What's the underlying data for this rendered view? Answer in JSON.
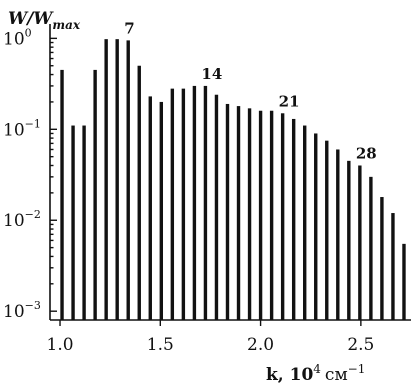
{
  "chart_data": {
    "type": "bar",
    "log_y": true,
    "grid": false,
    "ylabel": "W/W",
    "ylabel_sub": "max",
    "xlabel": "k, 10",
    "xlabel_exp": "4",
    "xlabel_unit": "см",
    "xlabel_unit_exp": "−1",
    "xlim": [
      0.95,
      2.75
    ],
    "ylim": [
      0.0008,
      1.3
    ],
    "x_ticks": [
      1.0,
      1.5,
      2.0,
      2.5
    ],
    "x_tick_labels": [
      "1.0",
      "1.5",
      "2.0",
      "2.5"
    ],
    "y_ticks": [
      1,
      0.1,
      0.01,
      0.001
    ],
    "y_tick_labels": [
      {
        "base": "10",
        "exp": "0"
      },
      {
        "base": "10",
        "exp": "−1"
      },
      {
        "base": "10",
        "exp": "−2"
      },
      {
        "base": "10",
        "exp": "−3"
      }
    ],
    "x": [
      1.01,
      1.065,
      1.12,
      1.175,
      1.23,
      1.285,
      1.34,
      1.395,
      1.45,
      1.505,
      1.56,
      1.615,
      1.67,
      1.725,
      1.78,
      1.835,
      1.89,
      1.945,
      2.0,
      2.055,
      2.11,
      2.165,
      2.22,
      2.275,
      2.33,
      2.385,
      2.44,
      2.495,
      2.55,
      2.605,
      2.66,
      2.715
    ],
    "values": [
      0.45,
      0.11,
      0.11,
      0.45,
      0.98,
      0.98,
      0.95,
      0.5,
      0.23,
      0.2,
      0.28,
      0.28,
      0.3,
      0.3,
      0.24,
      0.19,
      0.18,
      0.17,
      0.16,
      0.16,
      0.15,
      0.13,
      0.11,
      0.09,
      0.075,
      0.06,
      0.045,
      0.04,
      0.03,
      0.018,
      0.012,
      0.0055
    ],
    "annotations": [
      {
        "text": "7",
        "index": 6
      },
      {
        "text": "14",
        "index": 13
      },
      {
        "text": "21",
        "index": 20
      },
      {
        "text": "28",
        "index": 27
      }
    ]
  }
}
